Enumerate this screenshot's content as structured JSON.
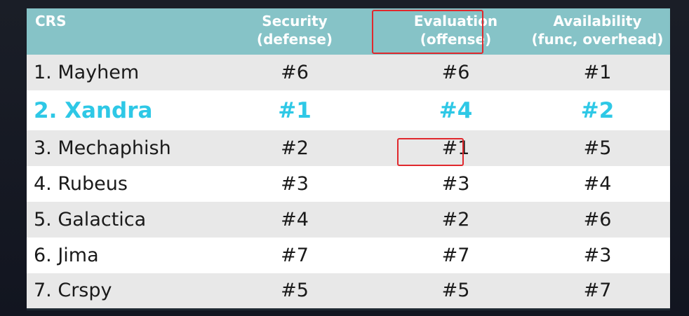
{
  "table": {
    "headers": {
      "crs": "CRS",
      "security_line1": "Security",
      "security_line2": "(defense)",
      "evaluation_line1": "Evaluation",
      "evaluation_line2": "(offense)",
      "availability_line1": "Availability",
      "availability_line2": "(func, overhead)"
    },
    "rows": [
      {
        "name": "1. Mayhem",
        "security": "#6",
        "evaluation": "#6",
        "availability": "#1"
      },
      {
        "name": "2. Xandra",
        "security": "#1",
        "evaluation": "#4",
        "availability": "#2"
      },
      {
        "name": "3. Mechaphish",
        "security": "#2",
        "evaluation": "#1",
        "availability": "#5"
      },
      {
        "name": "4. Rubeus",
        "security": "#3",
        "evaluation": "#3",
        "availability": "#4"
      },
      {
        "name": "5. Galactica",
        "security": "#4",
        "evaluation": "#2",
        "availability": "#6"
      },
      {
        "name": "6. Jima",
        "security": "#7",
        "evaluation": "#7",
        "availability": "#3"
      },
      {
        "name": "7. Crspy",
        "security": "#5",
        "evaluation": "#5",
        "availability": "#7"
      }
    ]
  },
  "colors": {
    "header_bg": "#86c3c7",
    "highlight_text": "#2ec8e6",
    "box_border": "#e0282d",
    "row_alt": "#e8e8e8",
    "row_base": "#ffffff"
  }
}
